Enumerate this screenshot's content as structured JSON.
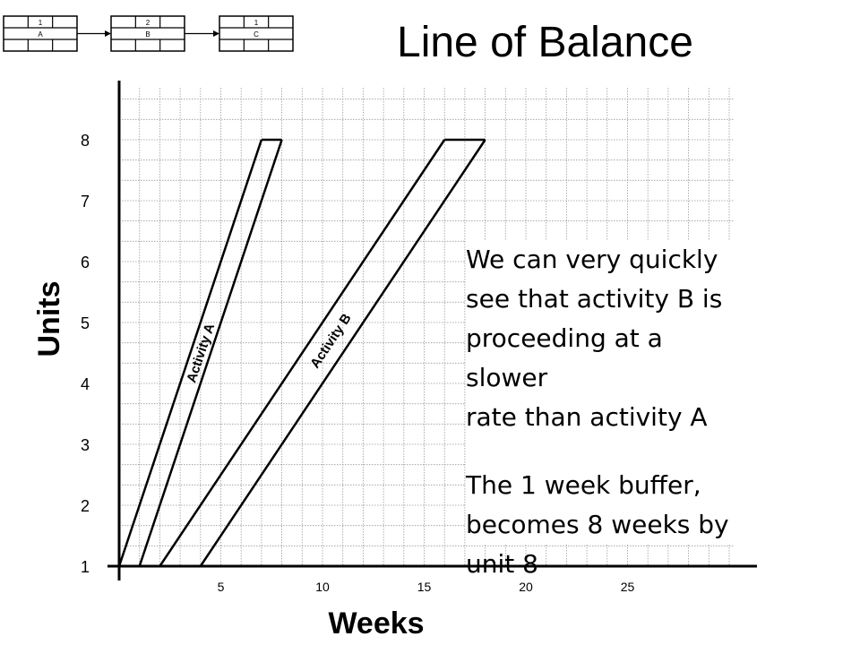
{
  "slide": {
    "title": "Line of Balance",
    "callout_lines_1": [
      "We can very quickly",
      "see that activity B is",
      "proceeding at a slower",
      "rate than activity A"
    ],
    "callout_lines_2": [
      "The 1 week buffer,",
      "becomes 8 weeks by",
      "unit 8"
    ]
  },
  "network": {
    "nodes": [
      {
        "top": "1",
        "name": "A"
      },
      {
        "top": "2",
        "name": "B"
      },
      {
        "top": "1",
        "name": "C"
      }
    ]
  },
  "chart_data": {
    "type": "line",
    "title": "Line of Balance",
    "xlabel": "Weeks",
    "ylabel": "Units",
    "xlim": [
      0,
      31
    ],
    "ylim": [
      1,
      9
    ],
    "x_ticks": [
      5,
      10,
      15,
      20,
      25
    ],
    "y_ticks": [
      1,
      2,
      3,
      4,
      5,
      6,
      7,
      8
    ],
    "grid": true,
    "series": [
      {
        "name": "Activity A",
        "label_text": "Activity A",
        "start_line": [
          [
            0,
            1
          ],
          [
            7,
            8
          ]
        ],
        "finish_line": [
          [
            1,
            1
          ],
          [
            8,
            8
          ]
        ]
      },
      {
        "name": "Activity B",
        "label_text": "Activity B",
        "start_line": [
          [
            2,
            1
          ],
          [
            16,
            8
          ]
        ],
        "finish_line": [
          [
            4,
            1
          ],
          [
            18,
            8
          ]
        ]
      }
    ]
  }
}
